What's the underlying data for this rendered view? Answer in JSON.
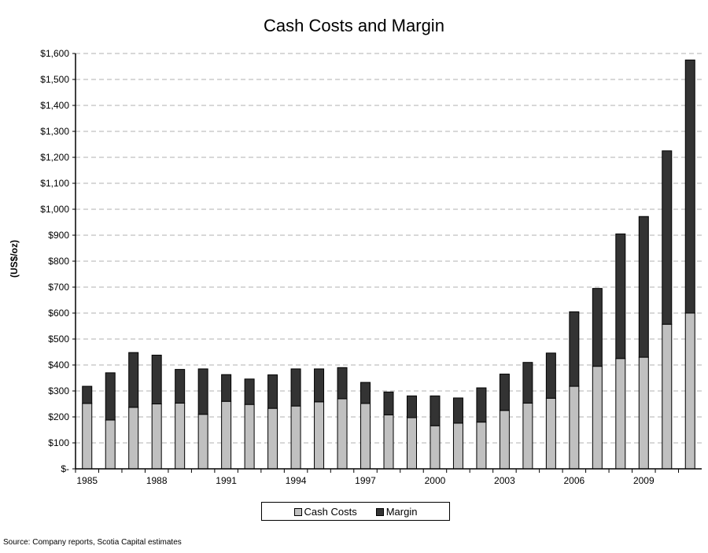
{
  "chart_data": {
    "type": "bar",
    "stacked": true,
    "title": "Cash Costs and Margin",
    "xlabel": "",
    "ylabel": "(US$/oz)",
    "ylim": [
      0,
      1600
    ],
    "yticks": [
      0,
      100,
      200,
      300,
      400,
      500,
      600,
      700,
      800,
      900,
      1000,
      1100,
      1200,
      1300,
      1400,
      1500,
      1600
    ],
    "ytick_labels": [
      "$-",
      "$100",
      "$200",
      "$300",
      "$400",
      "$500",
      "$600",
      "$700",
      "$800",
      "$900",
      "$1,000",
      "$1,100",
      "$1,200",
      "$1,300",
      "$1,400",
      "$1,500",
      "$1,600"
    ],
    "categories": [
      1985,
      1986,
      1987,
      1988,
      1989,
      1990,
      1991,
      1992,
      1993,
      1994,
      1995,
      1996,
      1997,
      1998,
      1999,
      2000,
      2001,
      2002,
      2003,
      2004,
      2005,
      2006,
      2007,
      2008,
      2009,
      2010,
      2011
    ],
    "xtick_labels": [
      "1985",
      "1988",
      "1991",
      "1994",
      "1997",
      "2000",
      "2003",
      "2006",
      "2009"
    ],
    "grid": "horizontal dashed",
    "legend_position": "bottom",
    "series": [
      {
        "name": "Cash Costs",
        "color": "#c0c0c0",
        "values": [
          252,
          188,
          237,
          250,
          253,
          210,
          260,
          248,
          233,
          242,
          258,
          270,
          252,
          208,
          197,
          166,
          176,
          180,
          225,
          253,
          272,
          318,
          395,
          425,
          430,
          557,
          600
        ]
      },
      {
        "name": "Margin",
        "color": "#333333",
        "values": [
          66,
          182,
          211,
          188,
          130,
          175,
          103,
          98,
          129,
          143,
          127,
          120,
          81,
          88,
          84,
          115,
          97,
          132,
          140,
          157,
          174,
          287,
          300,
          480,
          542,
          668,
          975
        ]
      }
    ],
    "source": "Source: Company reports, Scotia Capital estimates"
  }
}
